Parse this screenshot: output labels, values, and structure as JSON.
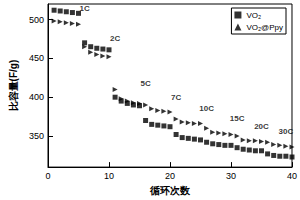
{
  "chart_data": {
    "type": "scatter",
    "x_label": "循环次数",
    "y_label": "比容量(F/g)",
    "xlim": [
      0,
      40
    ],
    "xticks": [
      0,
      10,
      20,
      30,
      40
    ],
    "ylim": [
      310,
      520
    ],
    "yticks": [
      350,
      400,
      450,
      500
    ],
    "grid": false,
    "legend": "upper right",
    "x": [
      1,
      2,
      3,
      4,
      5,
      6,
      7,
      8,
      9,
      10,
      11,
      12,
      13,
      14,
      15,
      16,
      17,
      18,
      19,
      20,
      21,
      22,
      23,
      24,
      25,
      26,
      27,
      28,
      29,
      30,
      31,
      32,
      33,
      34,
      35,
      36,
      37,
      38,
      39,
      40
    ],
    "series": [
      {
        "name": "VO₂",
        "color": "#000000",
        "marker": "square",
        "values": [
          512,
          511,
          510,
          509,
          508,
          470,
          465,
          463,
          462,
          461,
          400,
          395,
          392,
          390,
          389,
          370,
          365,
          364,
          363,
          362,
          352,
          348,
          347,
          346,
          345,
          342,
          340,
          339,
          338,
          338,
          335,
          333,
          332,
          331,
          331,
          327,
          325,
          324,
          324,
          323
        ]
      },
      {
        "name": "VO₂@Ppy",
        "color": "#000000",
        "marker": "triangle-right",
        "values": [
          498,
          497,
          496,
          495,
          494,
          465,
          458,
          455,
          453,
          452,
          410,
          398,
          395,
          393,
          392,
          390,
          385,
          383,
          382,
          381,
          372,
          368,
          367,
          366,
          366,
          360,
          355,
          354,
          353,
          352,
          350,
          345,
          344,
          344,
          343,
          342,
          339,
          338,
          337,
          336
        ]
      }
    ],
    "annotations": [
      {
        "text": "1C",
        "x": 6,
        "y": 514
      },
      {
        "text": "2C",
        "x": 11,
        "y": 476
      },
      {
        "text": "5C",
        "x": 16,
        "y": 418
      },
      {
        "text": "7C",
        "x": 21,
        "y": 400
      },
      {
        "text": "10C",
        "x": 26,
        "y": 386
      },
      {
        "text": "15C",
        "x": 31,
        "y": 373
      },
      {
        "text": "20C",
        "x": 35,
        "y": 362
      },
      {
        "text": "30C",
        "x": 39,
        "y": 356
      }
    ]
  }
}
